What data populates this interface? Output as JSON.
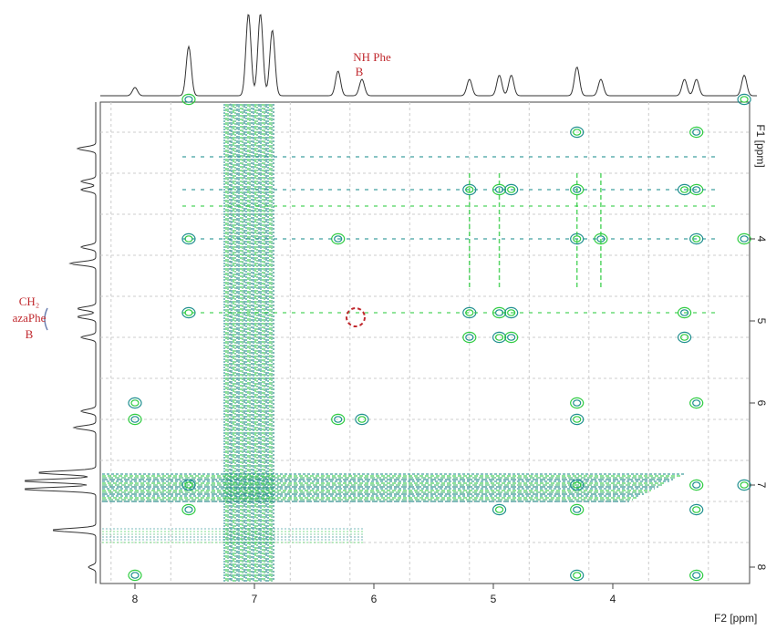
{
  "spectrum": {
    "x_axis": {
      "label": "F2 [ppm]",
      "ticks": [
        "8",
        "7",
        "6",
        "5",
        "4"
      ]
    },
    "y_axis": {
      "label": "F1 [ppm]",
      "ticks": [
        "4",
        "5",
        "6",
        "7",
        "8"
      ]
    },
    "annotations": [
      {
        "lines": [
          "NH  Phe",
          "B"
        ]
      },
      {
        "lines": [
          "CH₂",
          "azaPhe",
          "B"
        ]
      }
    ]
  }
}
